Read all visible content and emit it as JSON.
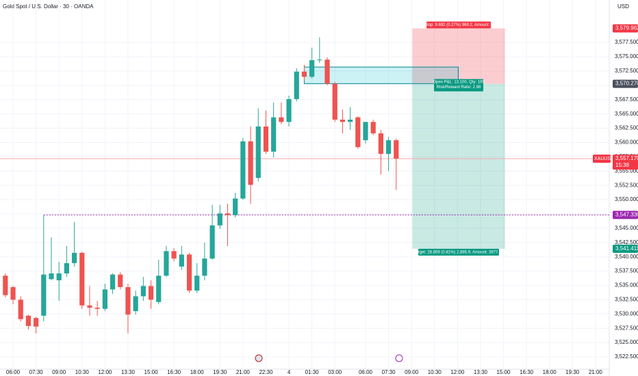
{
  "chart_data": {
    "type": "candlestick",
    "title": "Gold Spot / U.S. Dollar · 30 · OANDA",
    "currency": "USD",
    "up_color": "#26a69a",
    "down_color": "#ef5350",
    "open": [
      3536.7,
      3534.7,
      3532.5,
      3529.7,
      3529.3,
      3529.7,
      3536.1,
      3535.9,
      3537.1,
      3538.9,
      3540.7,
      3531.5,
      3531.1,
      3530.9,
      3534.3,
      3536.9,
      3534.7,
      3530.5,
      3533.1,
      3534.9,
      3532.1,
      3536.7,
      3541.0,
      3538.3,
      3540.4,
      3534.1,
      3536.7,
      3539.7,
      3545.5,
      3547.6,
      3547.3,
      3550.2,
      3560.2,
      3553.8,
      3562.8,
      3558.4,
      3564.4,
      3563.6,
      3567.6,
      3572.4,
      3571.5,
      3574.4,
      3574.5,
      3570.3,
      3564.0,
      3563.6,
      3564.4,
      3560.4,
      3563.6,
      3561.6,
      3558.0,
      3560.4
    ],
    "high": [
      3537.1,
      3534.9,
      3533.1,
      3529.9,
      3529.5,
      3547.3,
      3543.4,
      3539.1,
      3541.9,
      3546.1,
      3540.9,
      3534.9,
      3532.3,
      3535.3,
      3537.1,
      3537.3,
      3535.3,
      3534.1,
      3536.5,
      3535.9,
      3539.5,
      3541.9,
      3541.5,
      3541.9,
      3540.7,
      3538.9,
      3542.5,
      3549.1,
      3549.1,
      3549.3,
      3551.2,
      3560.8,
      3562.8,
      3566.0,
      3565.6,
      3567.0,
      3567.0,
      3568.2,
      3573.0,
      3573.6,
      3576.6,
      3578.4,
      3574.9,
      3570.6,
      3565.8,
      3566.2,
      3564.6,
      3563.6,
      3564.0,
      3562.2,
      3561.0,
      3560.7
    ],
    "low": [
      3532.9,
      3531.7,
      3528.7,
      3527.3,
      3526.6,
      3528.7,
      3535.9,
      3532.3,
      3536.5,
      3538.3,
      3530.9,
      3529.7,
      3529.7,
      3530.5,
      3533.5,
      3534.3,
      3526.6,
      3529.9,
      3532.3,
      3530.9,
      3531.7,
      3536.5,
      3539.2,
      3537.7,
      3533.7,
      3533.7,
      3535.9,
      3539.5,
      3544.9,
      3541.9,
      3546.9,
      3550.0,
      3549.3,
      3553.2,
      3558.0,
      3557.4,
      3563.2,
      3562.8,
      3567.2,
      3570.8,
      3571.2,
      3573.9,
      3570.0,
      3563.6,
      3561.6,
      3562.2,
      3558.9,
      3559.8,
      3561.3,
      3554.4,
      3555.0,
      3551.7
    ],
    "close": [
      3533.3,
      3532.5,
      3529.1,
      3527.9,
      3527.8,
      3536.9,
      3537.1,
      3537.1,
      3538.9,
      3540.7,
      3531.5,
      3531.1,
      3530.9,
      3534.3,
      3536.9,
      3534.7,
      3529.9,
      3533.1,
      3534.9,
      3532.5,
      3536.7,
      3541.0,
      3539.7,
      3540.4,
      3534.1,
      3536.7,
      3539.7,
      3545.5,
      3547.6,
      3547.3,
      3550.2,
      3560.2,
      3552.6,
      3562.8,
      3558.4,
      3564.4,
      3563.6,
      3567.6,
      3572.4,
      3571.5,
      3574.4,
      3574.5,
      3570.3,
      3564.0,
      3563.6,
      3564.0,
      3559.2,
      3563.6,
      3561.6,
      3558.0,
      3560.4,
      3557.17
    ],
    "xlim": [
      -0.7,
      78.8
    ],
    "xticks": [
      {
        "value": 1,
        "label": "06:00"
      },
      {
        "value": 4,
        "label": "07:30"
      },
      {
        "value": 7,
        "label": "09:00"
      },
      {
        "value": 10,
        "label": "10:30"
      },
      {
        "value": 13,
        "label": "12:00"
      },
      {
        "value": 16,
        "label": "13:30"
      },
      {
        "value": 19,
        "label": "15:00"
      },
      {
        "value": 22,
        "label": "16:30"
      },
      {
        "value": 25,
        "label": "18:00"
      },
      {
        "value": 28,
        "label": "19:30"
      },
      {
        "value": 31,
        "label": "21:00"
      },
      {
        "value": 34,
        "label": "22:30"
      },
      {
        "value": 37,
        "label": "4"
      },
      {
        "value": 40,
        "label": "01:30"
      },
      {
        "value": 43,
        "label": "03:00"
      },
      {
        "value": 47,
        "label": "06:00"
      },
      {
        "value": 50,
        "label": "07:30"
      },
      {
        "value": 53,
        "label": "09:00"
      },
      {
        "value": 56,
        "label": "10:30"
      },
      {
        "value": 59,
        "label": "12:00"
      },
      {
        "value": 62,
        "label": "13:30"
      },
      {
        "value": 65,
        "label": "15:00"
      },
      {
        "value": 68,
        "label": "16:30"
      },
      {
        "value": 71,
        "label": "18:00"
      },
      {
        "value": 74,
        "label": "19:30"
      },
      {
        "value": 77,
        "label": "21:00"
      }
    ],
    "ylim": [
      3520.35,
      3584.93
    ],
    "yticks": [
      {
        "value": 3522.5,
        "label": "3,522.500"
      },
      {
        "value": 3525,
        "label": "3,525.000"
      },
      {
        "value": 3527.5,
        "label": "3,527.500"
      },
      {
        "value": 3530,
        "label": "3,530.000"
      },
      {
        "value": 3532.5,
        "label": "3,532.500"
      },
      {
        "value": 3535,
        "label": "3,535.000"
      },
      {
        "value": 3537.5,
        "label": "3,537.500"
      },
      {
        "value": 3540,
        "label": "3,540.000"
      },
      {
        "value": 3542.5,
        "label": "3,542.500"
      },
      {
        "value": 3545,
        "label": "3,545.000"
      },
      {
        "value": 3547.5,
        "label": "3,547.500"
      },
      {
        "value": 3550,
        "label": "3,550.000"
      },
      {
        "value": 3552.5,
        "label": "3,552.500"
      },
      {
        "value": 3555,
        "label": "3,555.000"
      },
      {
        "value": 3557.5,
        "label": "3,557.500"
      },
      {
        "value": 3560,
        "label": "3,560.000"
      },
      {
        "value": 3562.5,
        "label": "3,562.500"
      },
      {
        "value": 3565,
        "label": "3,565.000"
      },
      {
        "value": 3567.5,
        "label": "3,567.500"
      },
      {
        "value": 3570,
        "label": "3,570.000"
      },
      {
        "value": 3572.5,
        "label": "3,572.500"
      },
      {
        "value": 3575,
        "label": "3,575.000"
      },
      {
        "value": 3577.5,
        "label": "3,577.500"
      }
    ],
    "position": {
      "x": [
        53.1,
        65.2
      ],
      "entry": {
        "value": 3570.27,
        "label": "3,570.270"
      },
      "stop": {
        "value": 3579.962,
        "label": "3,579.962"
      },
      "target": {
        "value": 3541.411,
        "label": "3,541.411"
      },
      "stop_text": "Stop: 9.692 (0.27%) 969.2, Amount: 0",
      "pnl_text": "Open P&L: 13.100, Qty: 100",
      "rr_text": "Risk/Reward Ratio: 2.98",
      "target_text": "Target: 28.859 (0.81%) 2,885.9, Amount: 3977.61"
    },
    "rectangle": {
      "x": [
        39,
        59.1
      ],
      "y": [
        3570.3,
        3573.2
      ]
    },
    "level": {
      "x": 5,
      "value": 3547.33,
      "label": "3,547.330",
      "color": "#9c27b0"
    },
    "last_price": {
      "symbol": "XAUUSD",
      "value": 3557.17,
      "label": "3,557.170",
      "countdown": "15:38"
    }
  }
}
